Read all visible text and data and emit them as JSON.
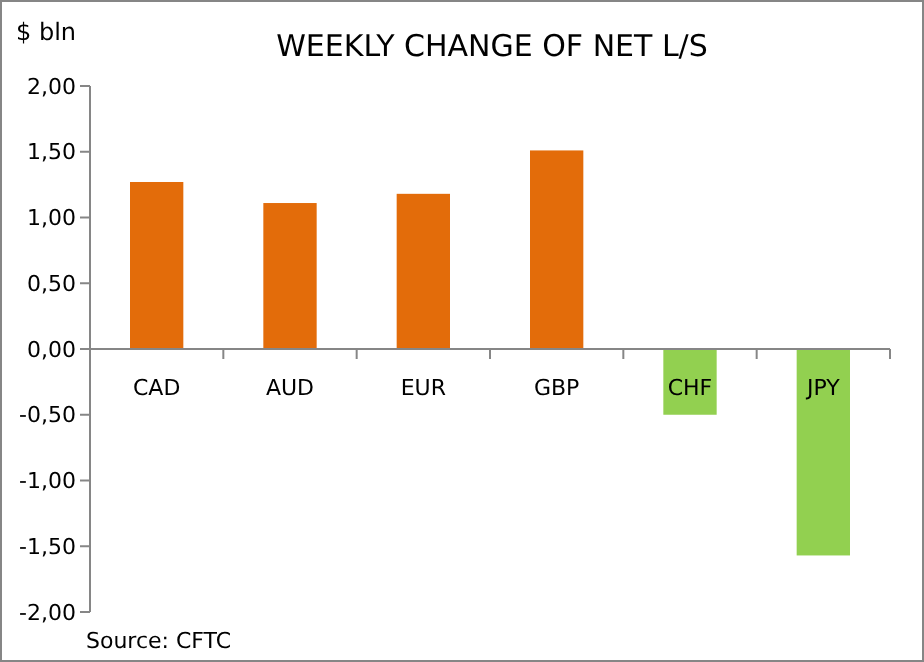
{
  "chart_data": {
    "type": "bar",
    "title": "WEEKLY CHANGE OF NET L/S",
    "ylabel": "$ bln",
    "categories": [
      "CAD",
      "AUD",
      "EUR",
      "GBP",
      "CHF",
      "JPY"
    ],
    "values": [
      1.27,
      1.11,
      1.18,
      1.51,
      -0.5,
      -1.57
    ],
    "colors": [
      "#e36c0a",
      "#e36c0a",
      "#e36c0a",
      "#e36c0a",
      "#92d050",
      "#92d050"
    ],
    "ylim": [
      -2,
      2
    ],
    "yticks": [
      {
        "value": -2,
        "label": "-2,00"
      },
      {
        "value": -1.5,
        "label": "-1,50"
      },
      {
        "value": -1,
        "label": "-1,00"
      },
      {
        "value": -0.5,
        "label": "-0,50"
      },
      {
        "value": 0,
        "label": "0,00"
      },
      {
        "value": 0.5,
        "label": "0,50"
      },
      {
        "value": 1,
        "label": "1,00"
      },
      {
        "value": 1.5,
        "label": "1,50"
      },
      {
        "value": 2,
        "label": "2,00"
      }
    ],
    "annotations": [
      "Source: CFTC"
    ]
  }
}
